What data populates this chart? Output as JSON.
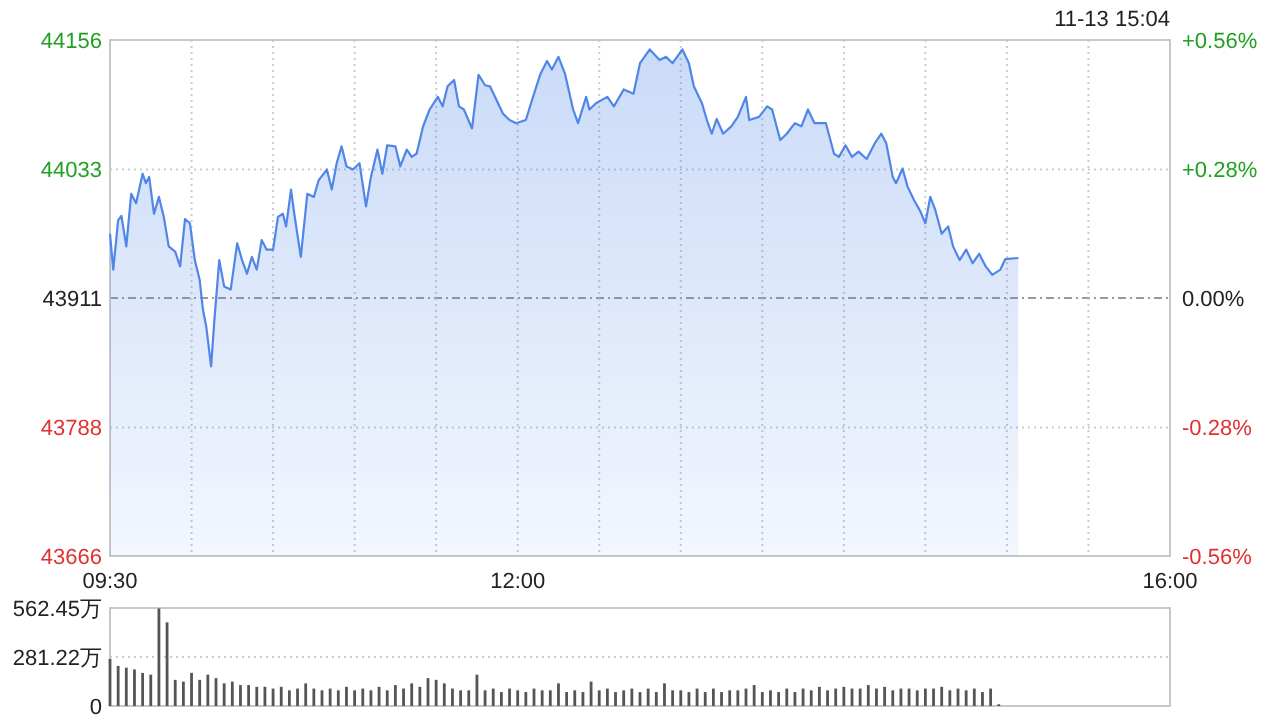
{
  "chart_data": [
    {
      "type": "area",
      "color": "#4f86e8",
      "annotations": [
        "11-13 15:04"
      ],
      "x": [
        9.5,
        9.52,
        9.55,
        9.57,
        9.6,
        9.63,
        9.66,
        9.7,
        9.72,
        9.74,
        9.77,
        9.8,
        9.83,
        9.86,
        9.9,
        9.93,
        9.96,
        9.99,
        10.02,
        10.05,
        10.07,
        10.09,
        10.12,
        10.14,
        10.17,
        10.2,
        10.24,
        10.28,
        10.31,
        10.34,
        10.37,
        10.4,
        10.43,
        10.46,
        10.5,
        10.53,
        10.56,
        10.58,
        10.61,
        10.63,
        10.67,
        10.71,
        10.75,
        10.78,
        10.83,
        10.86,
        10.89,
        10.92,
        10.95,
        10.99,
        11.03,
        11.07,
        11.1,
        11.14,
        11.17,
        11.2,
        11.25,
        11.28,
        11.32,
        11.35,
        11.38,
        11.42,
        11.46,
        11.51,
        11.54,
        11.57,
        11.61,
        11.64,
        11.67,
        11.72,
        11.76,
        11.8,
        11.83,
        11.87,
        11.91,
        11.95,
        11.99,
        12.05,
        12.1,
        12.14,
        12.18,
        12.21,
        12.25,
        12.29,
        12.34,
        12.37,
        12.42,
        12.44,
        12.48,
        12.55,
        12.59,
        12.65,
        12.71,
        12.75,
        12.81,
        12.87,
        12.91,
        12.95,
        13.01,
        13.05,
        13.08,
        13.13,
        13.16,
        13.19,
        13.22,
        13.26,
        13.31,
        13.35,
        13.4,
        13.42,
        13.48,
        13.53,
        13.56,
        13.61,
        13.65,
        13.7,
        13.74,
        13.78,
        13.82,
        13.89,
        13.94,
        13.97,
        14.01,
        14.05,
        14.09,
        14.14,
        14.19,
        14.23,
        14.26,
        14.3,
        14.32,
        14.36,
        14.39,
        14.43,
        14.47,
        14.5,
        14.53,
        14.56,
        14.6,
        14.64,
        14.67,
        14.71,
        14.75,
        14.79,
        14.83,
        14.87,
        14.91,
        14.96,
        14.99,
        15.07
      ],
      "values": [
        43972,
        43938,
        43985,
        43989,
        43960,
        44010,
        44001,
        44029,
        44020,
        44026,
        43991,
        44007,
        43988,
        43960,
        43955,
        43941,
        43986,
        43982,
        43947,
        43928,
        43900,
        43884,
        43846,
        43890,
        43947,
        43922,
        43919,
        43963,
        43947,
        43934,
        43950,
        43938,
        43966,
        43957,
        43957,
        43988,
        43991,
        43979,
        44014,
        43991,
        43950,
        44010,
        44007,
        44023,
        44033,
        44014,
        44039,
        44055,
        44036,
        44033,
        44039,
        43998,
        44026,
        44052,
        44029,
        44056,
        44055,
        44036,
        44052,
        44045,
        44048,
        44074,
        44090,
        44102,
        44093,
        44112,
        44118,
        44093,
        44090,
        44072,
        44123,
        44113,
        44112,
        44099,
        44086,
        44080,
        44077,
        44080,
        44105,
        44124,
        44136,
        44128,
        44140,
        44124,
        44090,
        44077,
        44102,
        44090,
        44096,
        44102,
        44093,
        44109,
        44105,
        44134,
        44147,
        44137,
        44140,
        44134,
        44147,
        44134,
        44112,
        44096,
        44080,
        44067,
        44081,
        44067,
        44074,
        44083,
        44102,
        44080,
        44083,
        44093,
        44090,
        44061,
        44067,
        44077,
        44074,
        44090,
        44077,
        44077,
        44048,
        44045,
        44056,
        44045,
        44050,
        44043,
        44058,
        44067,
        44058,
        44026,
        44020,
        44034,
        44017,
        44004,
        43993,
        43982,
        44007,
        43995,
        43972,
        43979,
        43960,
        43947,
        43957,
        43944,
        43953,
        43941,
        43933,
        43938,
        43948,
        43949
      ],
      "xlim": [
        9.5,
        16
      ],
      "xticks": [
        {
          "value": 9.5,
          "label": "09:30"
        },
        {
          "value": 10,
          "label": null
        },
        {
          "value": 10.5,
          "label": null
        },
        {
          "value": 11,
          "label": null
        },
        {
          "value": 11.5,
          "label": null
        },
        {
          "value": 12,
          "label": "12:00"
        },
        {
          "value": 12.5,
          "label": null
        },
        {
          "value": 13,
          "label": null
        },
        {
          "value": 13.5,
          "label": null
        },
        {
          "value": 14,
          "label": null
        },
        {
          "value": 14.5,
          "label": null
        },
        {
          "value": 15,
          "label": null
        },
        {
          "value": 15.5,
          "label": null
        },
        {
          "value": 16,
          "label": "16:00"
        }
      ],
      "ylim": [
        43666,
        44156
      ],
      "yticks": [
        43666,
        43788,
        43911,
        44033,
        44156
      ],
      "y2lim": [
        -0.56,
        0.56
      ],
      "y2ticks": [
        {
          "value": -0.56,
          "label": "-0.56%"
        },
        {
          "value": -0.28,
          "label": "-0.28%"
        },
        {
          "value": 0,
          "label": "0.00%"
        },
        {
          "value": 0.28,
          "label": "+0.28%"
        },
        {
          "value": 0.56,
          "label": "+0.56%"
        }
      ],
      "ref_lines": [
        {
          "axis": "y2",
          "value": 0,
          "color": "#999999",
          "line_style": "dashed"
        }
      ],
      "grid": true
    },
    {
      "type": "bar",
      "color": "#555555",
      "tick_labels": "y",
      "grid": true,
      "x": [
        9.5,
        9.55,
        9.6,
        9.65,
        9.7,
        9.75,
        9.8,
        9.85,
        9.9,
        9.95,
        10,
        10.05,
        10.1,
        10.15,
        10.2,
        10.25,
        10.3,
        10.35,
        10.4,
        10.45,
        10.5,
        10.55,
        10.6,
        10.65,
        10.7,
        10.75,
        10.8,
        10.85,
        10.9,
        10.95,
        11,
        11.05,
        11.1,
        11.15,
        11.2,
        11.25,
        11.3,
        11.35,
        11.4,
        11.45,
        11.5,
        11.55,
        11.6,
        11.65,
        11.7,
        11.75,
        11.8,
        11.85,
        11.9,
        11.95,
        12,
        12.05,
        12.1,
        12.15,
        12.2,
        12.25,
        12.3,
        12.35,
        12.4,
        12.45,
        12.5,
        12.55,
        12.6,
        12.65,
        12.7,
        12.75,
        12.8,
        12.85,
        12.9,
        12.95,
        13,
        13.05,
        13.1,
        13.15,
        13.2,
        13.25,
        13.3,
        13.35,
        13.4,
        13.45,
        13.5,
        13.55,
        13.6,
        13.65,
        13.7,
        13.75,
        13.8,
        13.85,
        13.9,
        13.95,
        14,
        14.05,
        14.1,
        14.15,
        14.2,
        14.25,
        14.3,
        14.35,
        14.4,
        14.45,
        14.5,
        14.55,
        14.6,
        14.65,
        14.7,
        14.75,
        14.8,
        14.85,
        14.9,
        14.95
      ],
      "values": [
        270,
        230,
        220,
        210,
        190,
        180,
        560,
        480,
        150,
        140,
        190,
        150,
        180,
        160,
        130,
        140,
        120,
        120,
        110,
        110,
        100,
        110,
        90,
        100,
        130,
        100,
        90,
        100,
        90,
        110,
        90,
        100,
        90,
        110,
        90,
        120,
        100,
        130,
        110,
        160,
        150,
        130,
        100,
        90,
        90,
        180,
        90,
        100,
        80,
        100,
        90,
        80,
        100,
        90,
        90,
        130,
        80,
        90,
        80,
        140,
        90,
        100,
        80,
        90,
        100,
        80,
        100,
        80,
        130,
        90,
        90,
        80,
        100,
        80,
        100,
        80,
        90,
        90,
        100,
        120,
        80,
        90,
        80,
        100,
        80,
        100,
        90,
        110,
        90,
        100,
        110,
        100,
        100,
        120,
        100,
        110,
        90,
        100,
        100,
        90,
        100,
        100,
        110,
        90,
        100,
        90,
        100,
        80,
        100,
        10
      ],
      "xlim": [
        9.5,
        16
      ],
      "ylim": [
        0,
        562.45
      ],
      "yticks": [
        0,
        {
          "value": 281.22,
          "label": "281.22万"
        },
        {
          "value": 562.45,
          "label": "562.45万"
        }
      ]
    }
  ]
}
